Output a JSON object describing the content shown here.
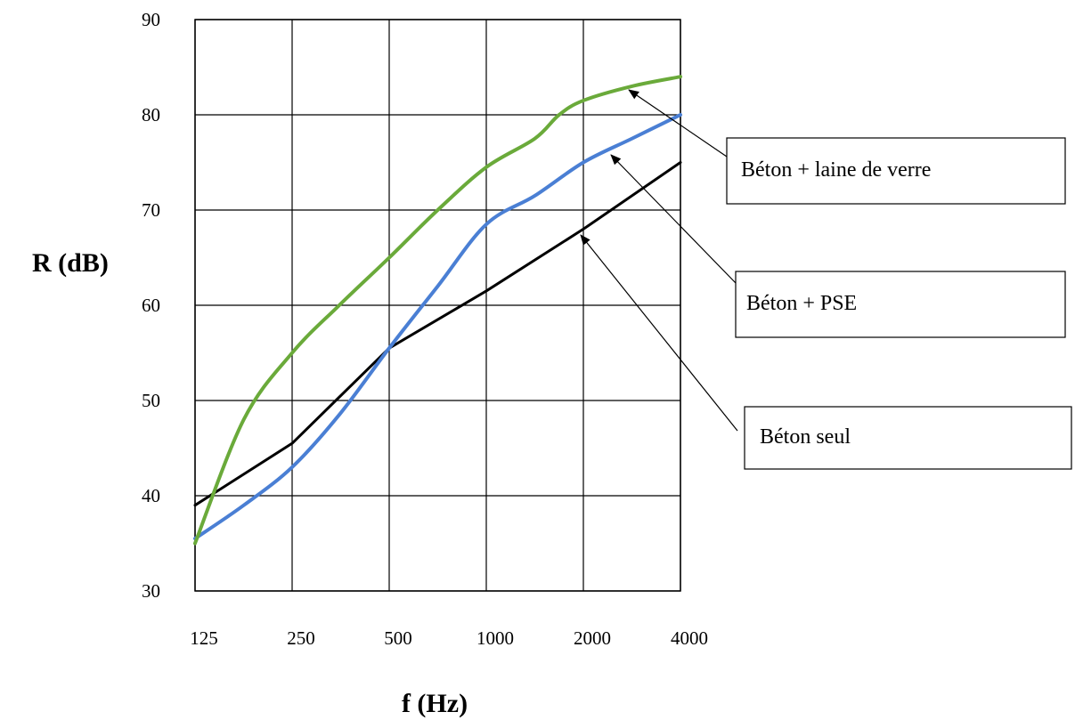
{
  "chart_data": {
    "type": "line",
    "title": "",
    "xlabel": "f (Hz)",
    "ylabel": "R (dB)",
    "x_ticks": [
      "125",
      "250",
      "500",
      "1000",
      "2000",
      "4000"
    ],
    "x": [
      125,
      250,
      500,
      1000,
      2000,
      4000
    ],
    "ylim": [
      30,
      90
    ],
    "y_ticks": [
      30,
      40,
      50,
      60,
      70,
      80,
      90
    ],
    "grid": true,
    "legend": "callout boxes right",
    "series": [
      {
        "name": "Béton seul",
        "color": "#000000",
        "points": [
          [
            125,
            39
          ],
          [
            250,
            45.5
          ],
          [
            500,
            55.5
          ],
          [
            1000,
            61.5
          ],
          [
            2000,
            68
          ],
          [
            4000,
            75
          ]
        ]
      },
      {
        "name": "Béton + PSE",
        "color": "#4a7fd4",
        "points": [
          [
            125,
            35.5
          ],
          [
            177,
            39
          ],
          [
            250,
            43
          ],
          [
            350,
            48.5
          ],
          [
            500,
            55.5
          ],
          [
            707,
            62
          ],
          [
            1000,
            68.5
          ],
          [
            1414,
            71.5
          ],
          [
            2000,
            75
          ],
          [
            2828,
            77.5
          ],
          [
            4000,
            80
          ]
        ]
      },
      {
        "name": "Béton + laine de verre",
        "color": "#6aaa3a",
        "points": [
          [
            125,
            35
          ],
          [
            177,
            48
          ],
          [
            250,
            55
          ],
          [
            350,
            60
          ],
          [
            500,
            65
          ],
          [
            707,
            70
          ],
          [
            1000,
            74.5
          ],
          [
            1414,
            77.5
          ],
          [
            1682,
            80
          ],
          [
            2000,
            81.5
          ],
          [
            2828,
            83
          ],
          [
            4000,
            84
          ]
        ]
      }
    ]
  }
}
